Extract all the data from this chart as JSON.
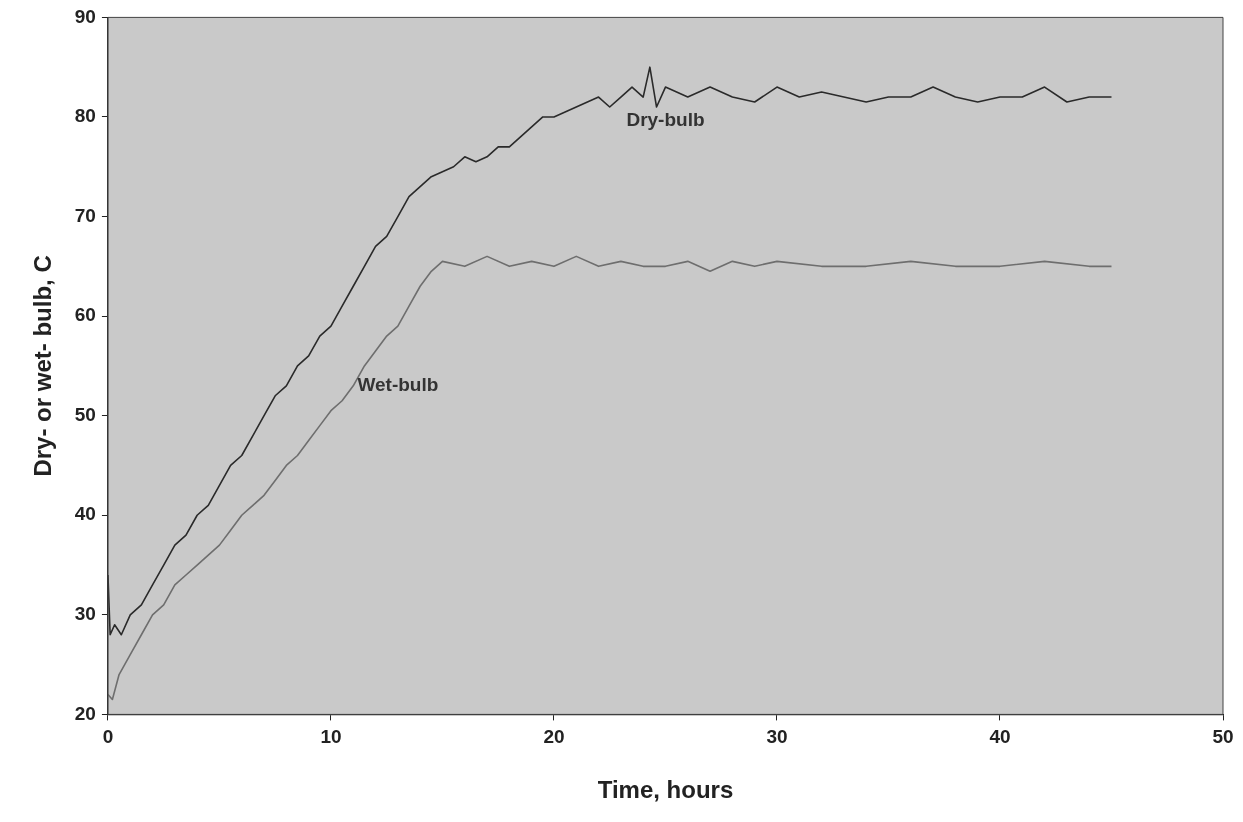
{
  "chart_data": {
    "type": "line",
    "xlabel": "Time, hours",
    "ylabel": "Dry- or wet- bulb, C",
    "xlim": [
      0,
      50
    ],
    "xticks": [
      0,
      10,
      20,
      30,
      40,
      50
    ],
    "ylim": [
      20,
      90
    ],
    "yticks": [
      20,
      30,
      40,
      50,
      60,
      70,
      80,
      90
    ],
    "grid": false,
    "legend": false,
    "marker": "none",
    "line_style": "solid",
    "series": [
      {
        "name": "Dry-bulb",
        "color": "#2a2a2a",
        "x": [
          0,
          0.1,
          0.3,
          0.6,
          1,
          1.5,
          2,
          2.5,
          3,
          3.5,
          4,
          4.5,
          5,
          5.5,
          6,
          6.5,
          7,
          7.5,
          8,
          8.5,
          9,
          9.5,
          10,
          10.5,
          11,
          11.5,
          12,
          12.5,
          13,
          13.5,
          14,
          14.5,
          15,
          15.5,
          16,
          16.5,
          17,
          17.5,
          18,
          18.5,
          19,
          19.5,
          20,
          20.5,
          21,
          21.5,
          22,
          22.5,
          23,
          23.5,
          24,
          24.3,
          24.6,
          25,
          26,
          27,
          28,
          29,
          30,
          31,
          32,
          33,
          34,
          35,
          36,
          37,
          38,
          39,
          40,
          41,
          42,
          43,
          44,
          45
        ],
        "values": [
          34,
          28,
          29,
          28,
          30,
          31,
          33,
          35,
          37,
          38,
          40,
          41,
          43,
          45,
          46,
          48,
          50,
          52,
          53,
          55,
          56,
          58,
          59,
          61,
          63,
          65,
          67,
          68,
          70,
          72,
          73,
          74,
          74.5,
          75,
          76,
          75.5,
          76,
          77,
          77,
          78,
          79,
          80,
          80,
          80.5,
          81,
          81.5,
          82,
          81,
          82,
          83,
          82,
          85,
          81,
          83,
          82,
          83,
          82,
          81.5,
          83,
          82,
          82.5,
          82,
          81.5,
          82,
          82,
          83,
          82,
          81.5,
          82,
          82,
          83,
          81.5,
          82,
          82
        ]
      },
      {
        "name": "Wet-bulb",
        "color": "#6e6e6e",
        "x": [
          0,
          0.2,
          0.5,
          1,
          1.5,
          2,
          2.5,
          3,
          3.5,
          4,
          4.5,
          5,
          5.5,
          6,
          6.5,
          7,
          7.5,
          8,
          8.5,
          9,
          9.5,
          10,
          10.5,
          11,
          11.5,
          12,
          12.5,
          13,
          13.5,
          14,
          14.5,
          15,
          16,
          17,
          18,
          19,
          20,
          21,
          22,
          23,
          24,
          25,
          26,
          27,
          28,
          29,
          30,
          32,
          34,
          36,
          38,
          40,
          42,
          44,
          45
        ],
        "values": [
          22,
          21.5,
          24,
          26,
          28,
          30,
          31,
          33,
          34,
          35,
          36,
          37,
          38.5,
          40,
          41,
          42,
          43.5,
          45,
          46,
          47.5,
          49,
          50.5,
          51.5,
          53,
          55,
          56.5,
          58,
          59,
          61,
          63,
          64.5,
          65.5,
          65,
          66,
          65,
          65.5,
          65,
          66,
          65,
          65.5,
          65,
          65,
          65.5,
          64.5,
          65.5,
          65,
          65.5,
          65,
          65,
          65.5,
          65,
          65,
          65.5,
          65,
          65
        ]
      }
    ]
  }
}
